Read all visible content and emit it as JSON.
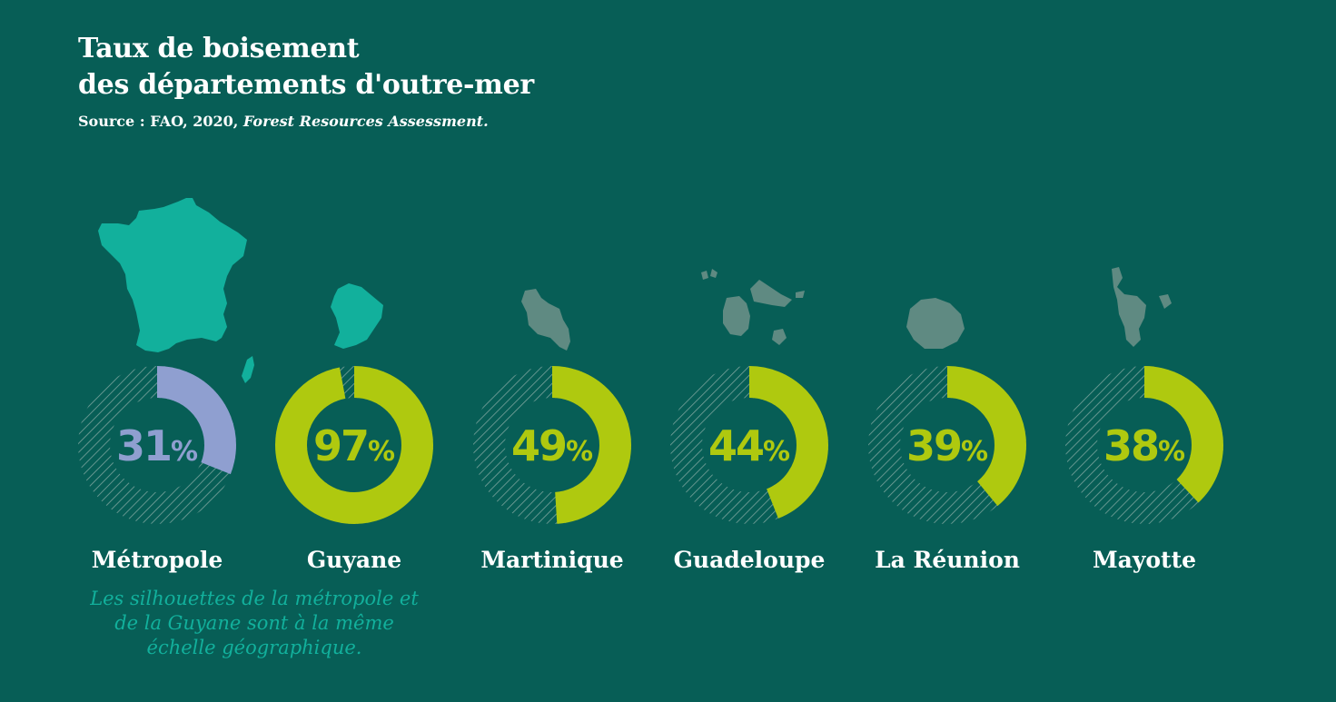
{
  "title_line1": "Taux de boisement",
  "title_line2": "des départements d'outre-mer",
  "source_prefix": "Source : FAO, 2020, ",
  "source_italic": "Forest Resources Assessment.",
  "note": "Les silhouettes de la métropole et de la Guyane sont à la même échelle géographique.",
  "colors": {
    "background": "#075e56",
    "highlight": "#afc90f",
    "metropole": "#8f9fd0",
    "silhouette_large": "#12b09c",
    "silhouette_small": "#5f8a82",
    "hatch": "#7aa39c"
  },
  "chart_data": {
    "type": "donut",
    "unit": "%",
    "categories": [
      "Métropole",
      "Guyane",
      "Martinique",
      "Guadeloupe",
      "La Réunion",
      "Mayotte"
    ],
    "values": [
      31,
      97,
      49,
      44,
      39,
      38
    ],
    "labels": [
      "31",
      "97",
      "49",
      "44",
      "39",
      "38"
    ],
    "ylim": [
      0,
      100
    ]
  }
}
